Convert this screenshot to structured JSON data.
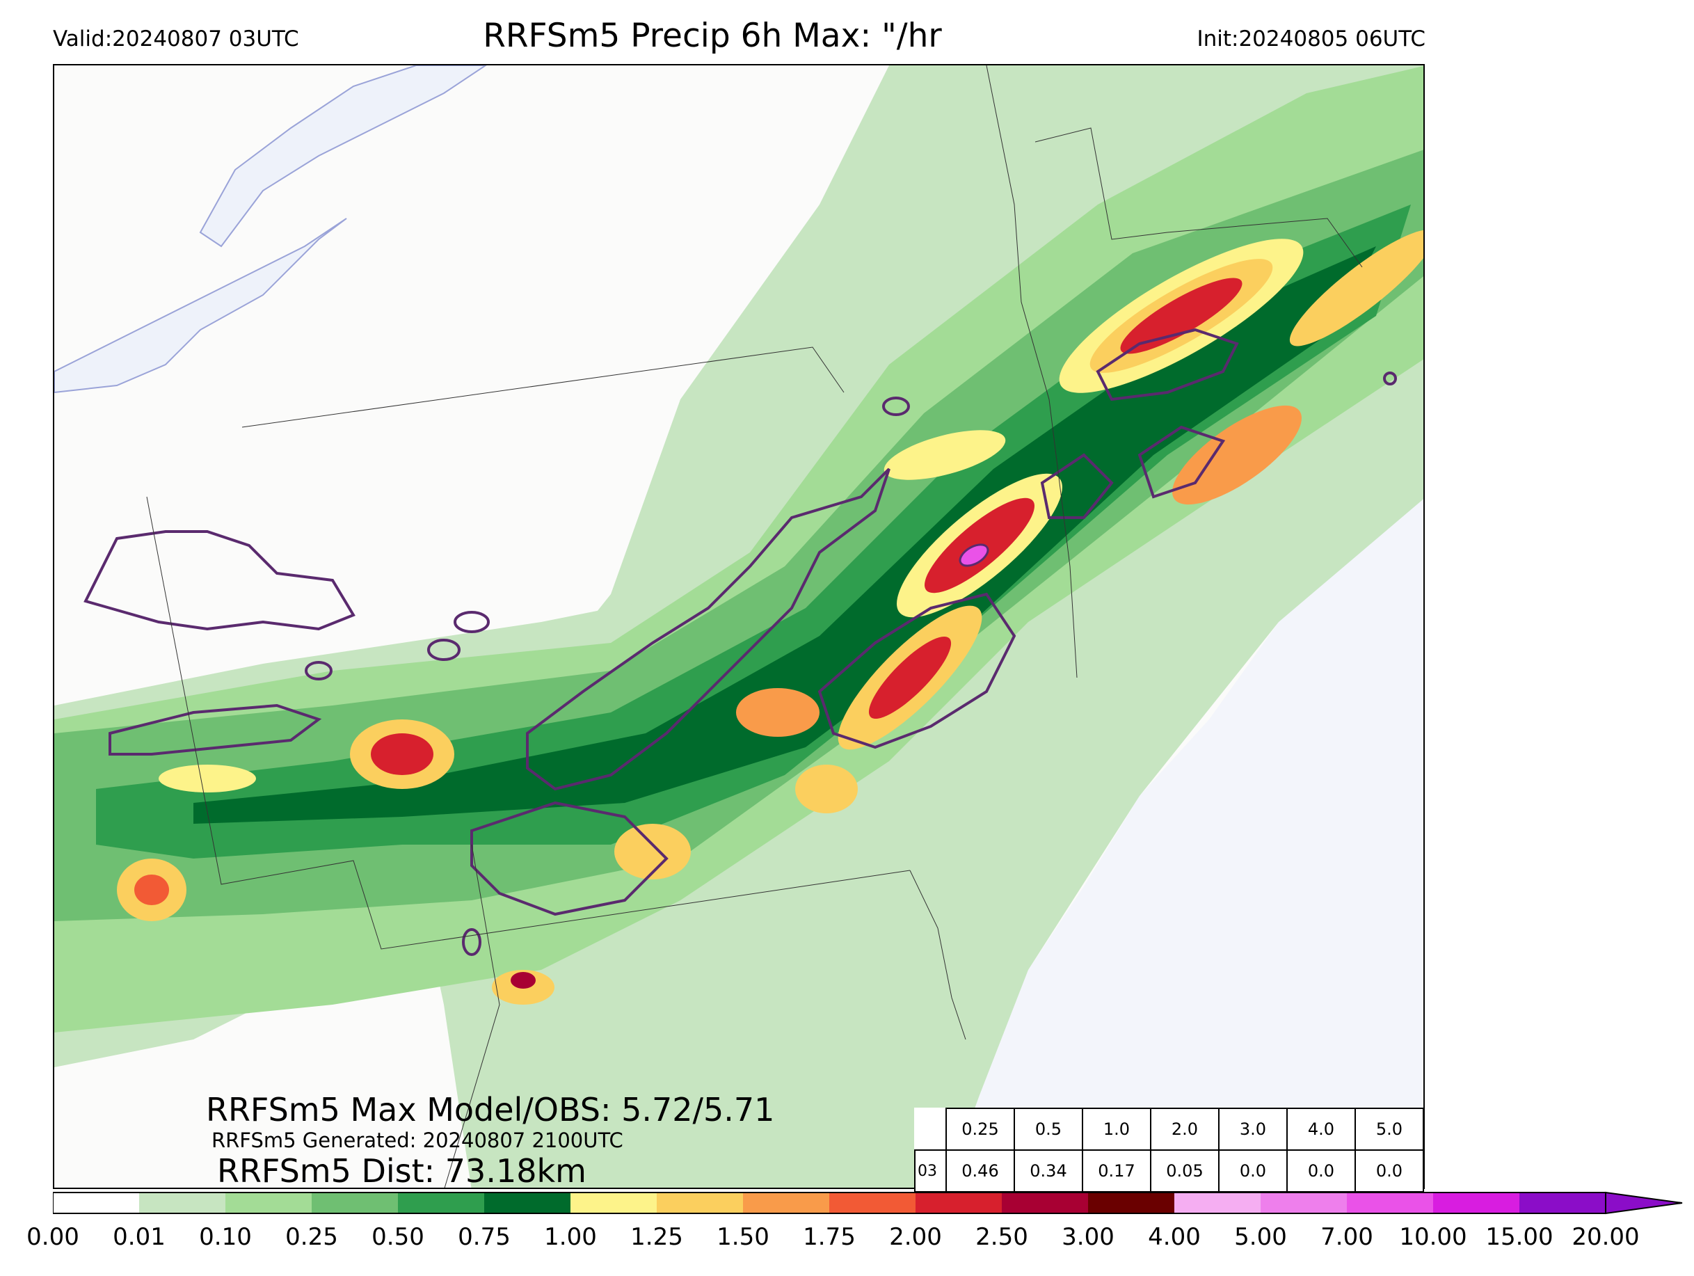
{
  "header": {
    "valid": "Valid:20240807 03UTC",
    "title": "RRFSm5 Precip 6h Max: \"/hr",
    "init": "Init:20240805 06UTC"
  },
  "stats": {
    "max_model_obs": "RRFSm5 Max Model/OBS: 5.72/5.71",
    "generated": "RRFSm5 Generated: 20240807 2100UTC",
    "distance": "RRFSm5 Dist: 73.18km"
  },
  "threshold_table": {
    "row_label": "03",
    "thresholds": [
      "0.25",
      "0.5",
      "1.0",
      "2.0",
      "3.0",
      "4.0",
      "5.0"
    ],
    "values": [
      "0.46",
      "0.34",
      "0.17",
      "0.05",
      "0.0",
      "0.0",
      "0.0"
    ]
  },
  "colorbar": {
    "ticks": [
      "0.00",
      "0.01",
      "0.10",
      "0.25",
      "0.50",
      "0.75",
      "1.00",
      "1.25",
      "1.50",
      "1.75",
      "2.00",
      "2.50",
      "3.00",
      "4.00",
      "5.00",
      "7.00",
      "10.00",
      "15.00",
      "20.00"
    ],
    "colors": [
      "#ffffff",
      "#c7e5c1",
      "#a3dc96",
      "#6fbf72",
      "#2f9e4e",
      "#006b2c",
      "#fdf38a",
      "#fbcf5e",
      "#f99b4a",
      "#f25a35",
      "#d7202d",
      "#a80033",
      "#6a0000",
      "#f5aef2",
      "#ee7fec",
      "#ea52e8",
      "#d81de0",
      "#8b0dc8"
    ]
  },
  "legend_colors": {
    "water": "#eef2fa",
    "obs_contour": "#5a2a6e"
  }
}
